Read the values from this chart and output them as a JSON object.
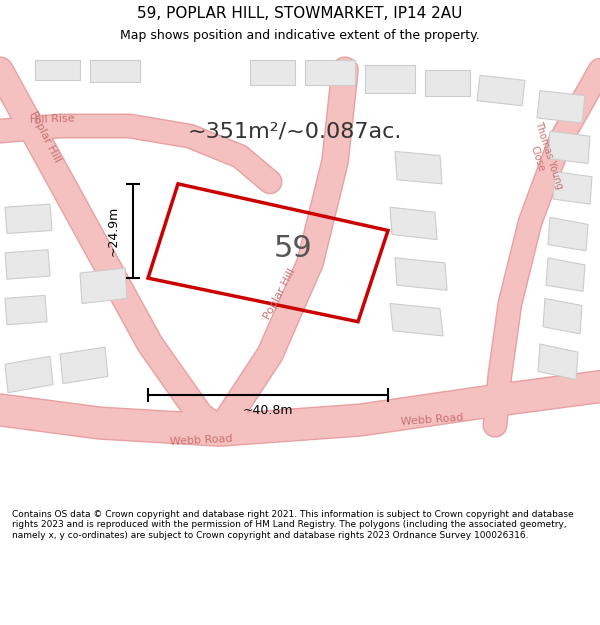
{
  "title": "59, POPLAR HILL, STOWMARKET, IP14 2AU",
  "subtitle": "Map shows position and indicative extent of the property.",
  "area_text": "~351m²/~0.087ac.",
  "dim_width": "~40.8m",
  "dim_height": "~24.9m",
  "plot_number": "59",
  "footer": "Contains OS data © Crown copyright and database right 2021. This information is subject to Crown copyright and database rights 2023 and is reproduced with the permission of HM Land Registry. The polygons (including the associated geometry, namely x, y co-ordinates) are subject to Crown copyright and database rights 2023 Ordnance Survey 100026316.",
  "bg_color": "#f5f5f5",
  "map_bg": "#ffffff",
  "road_color": "#f5c0c0",
  "road_outline": "#e8a0a0",
  "highlight_color": "#cc0000",
  "street_label_color": "#c87070",
  "title_color": "#000000",
  "footer_color": "#000000",
  "map_border_color": "#cccccc",
  "building_color": "#e8e8e8",
  "building_edge": "#cccccc"
}
